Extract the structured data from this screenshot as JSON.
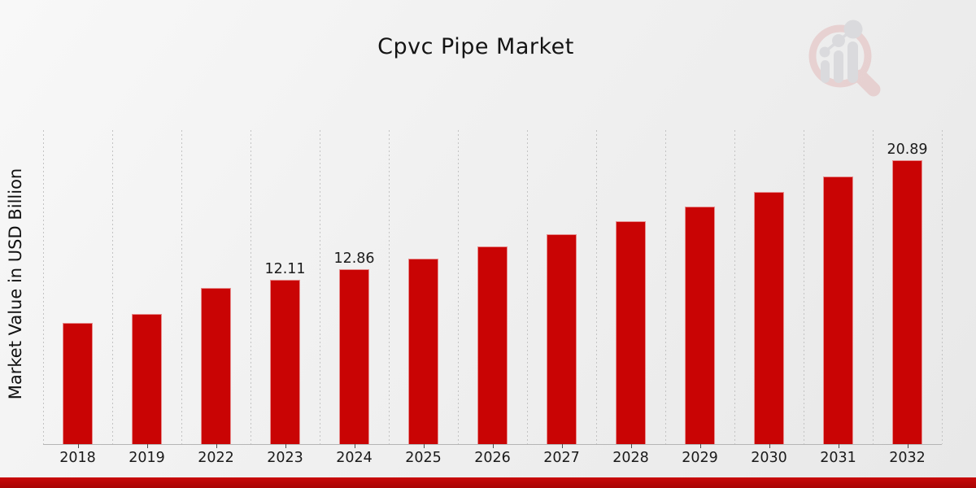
{
  "page": {
    "title": "Cpvc Pipe Market",
    "watermark_icon": "magnifier-bar-chart-icon"
  },
  "chart_data": {
    "type": "bar",
    "title": "Cpvc Pipe Market",
    "xlabel": "",
    "ylabel": "Market Value in USD Billion",
    "categories": [
      "2018",
      "2019",
      "2022",
      "2023",
      "2024",
      "2025",
      "2026",
      "2027",
      "2028",
      "2029",
      "2030",
      "2031",
      "2032"
    ],
    "values": [
      8.94,
      9.6,
      11.48,
      12.11,
      12.86,
      13.67,
      14.54,
      15.45,
      16.42,
      17.47,
      18.56,
      19.7,
      20.89
    ],
    "data_labels": {
      "2023": "12.11",
      "2024": "12.86",
      "2032": "20.89"
    },
    "ylim": [
      0,
      23.1
    ],
    "grid": "vertical-dashed",
    "legend": "none",
    "bar_color": "#c90404",
    "grid_color": "#c3c3c3",
    "axis_color": "#b5b5b5",
    "label_color": "#1c1c1c",
    "accent_band_color": "#c90909"
  }
}
